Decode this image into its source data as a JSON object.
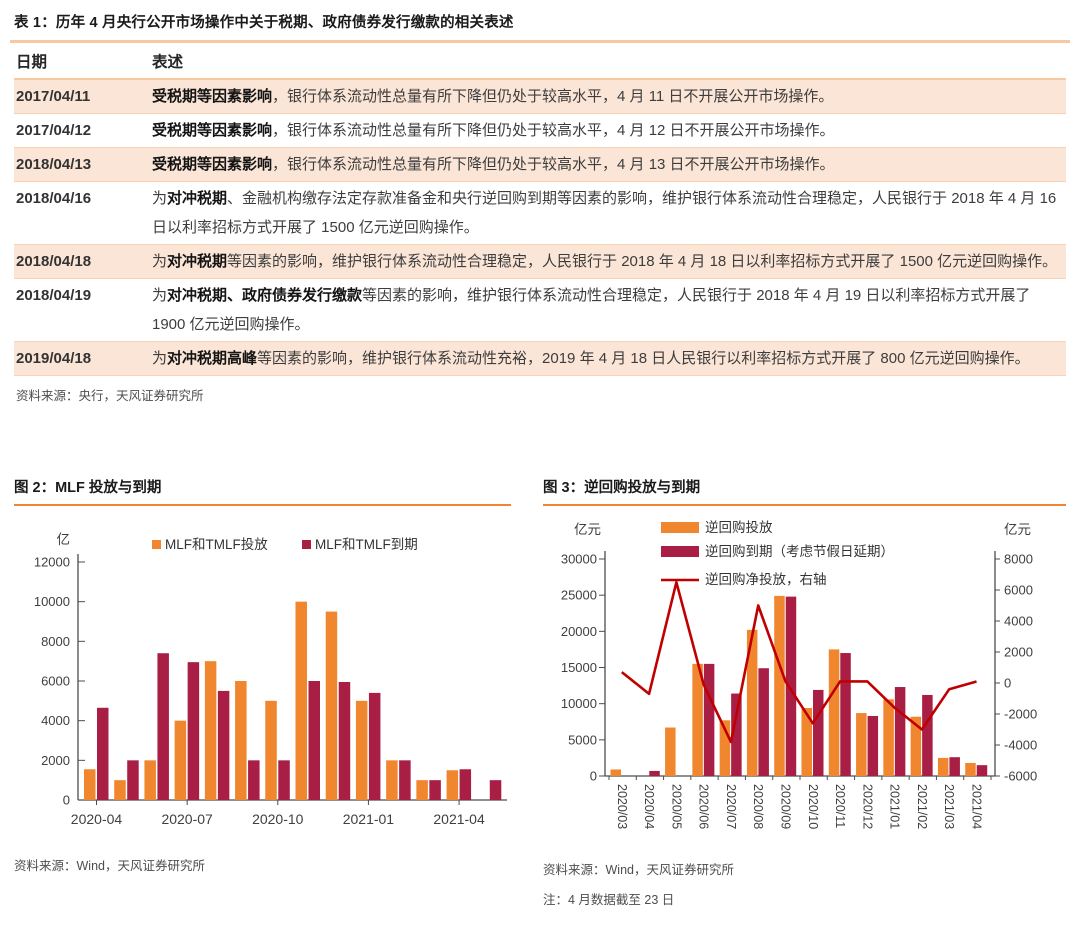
{
  "table": {
    "title": "表 1：历年 4 月央行公开市场操作中关于税期、政府债券发行缴款的相关表述",
    "columns": [
      "日期",
      "表述"
    ],
    "rows": [
      {
        "date": "2017/04/11",
        "highlight": true,
        "parts": [
          {
            "t": "受税期等因素影响",
            "b": true
          },
          {
            "t": "，银行体系流动性总量有所下降但仍处于较高水平，4 月 11 日不开展公开市场操作。",
            "b": false
          }
        ]
      },
      {
        "date": "2017/04/12",
        "highlight": false,
        "parts": [
          {
            "t": "受税期等因素影响",
            "b": true
          },
          {
            "t": "，银行体系流动性总量有所下降但仍处于较高水平，4 月 12 日不开展公开市场操作。",
            "b": false
          }
        ]
      },
      {
        "date": "2018/04/13",
        "highlight": true,
        "parts": [
          {
            "t": "受税期等因素影响",
            "b": true
          },
          {
            "t": "，银行体系流动性总量有所下降但仍处于较高水平，4 月 13 日不开展公开市场操作。",
            "b": false
          }
        ]
      },
      {
        "date": "2018/04/16",
        "highlight": false,
        "parts": [
          {
            "t": "为",
            "b": false
          },
          {
            "t": "对冲税期",
            "b": true
          },
          {
            "t": "、金融机构缴存法定存款准备金和央行逆回购到期等因素的影响，维护银行体系流动性合理稳定，人民银行于 2018 年 4 月 16 日以利率招标方式开展了 1500 亿元逆回购操作。",
            "b": false
          }
        ]
      },
      {
        "date": "2018/04/18",
        "highlight": true,
        "parts": [
          {
            "t": "为",
            "b": false
          },
          {
            "t": "对冲税期",
            "b": true
          },
          {
            "t": "等因素的影响，维护银行体系流动性合理稳定，人民银行于 2018 年 4 月 18 日以利率招标方式开展了 1500 亿元逆回购操作。",
            "b": false
          }
        ]
      },
      {
        "date": "2018/04/19",
        "highlight": false,
        "parts": [
          {
            "t": "为",
            "b": false
          },
          {
            "t": "对冲税期、政府债券发行缴款",
            "b": true
          },
          {
            "t": "等因素的影响，维护银行体系流动性合理稳定，人民银行于 2018 年 4 月 19 日以利率招标方式开展了 1900 亿元逆回购操作。",
            "b": false
          }
        ]
      },
      {
        "date": "2019/04/18",
        "highlight": true,
        "parts": [
          {
            "t": "为",
            "b": false
          },
          {
            "t": "对冲税期高峰",
            "b": true
          },
          {
            "t": "等因素的影响，维护银行体系流动性充裕，2019 年 4 月 18 日人民银行以利率招标方式开展了 800 亿元逆回购操作。",
            "b": false
          }
        ]
      }
    ],
    "source": "资料来源：央行，天风证券研究所"
  },
  "colors": {
    "orange": "#F0862D",
    "crimson": "#A91E45",
    "line_red": "#C00000",
    "rule_orange": "#F08433",
    "rule_peach": "#F7C9A3",
    "row_peach": "#FBE5D6"
  },
  "chart_data": [
    {
      "type": "bar",
      "title": "图 2：MLF 投放与到期",
      "unit": "亿",
      "categories": [
        "2020-04",
        "2020-05",
        "2020-06",
        "2020-07",
        "2020-08",
        "2020-09",
        "2020-10",
        "2020-11",
        "2020-12",
        "2021-01",
        "2021-02",
        "2021-03",
        "2021-04",
        "2021-05"
      ],
      "x_tick_labels": [
        "2020-04",
        "2020-07",
        "2020-10",
        "2021-01",
        "2021-04"
      ],
      "x_tick_indices": [
        0,
        3,
        6,
        9,
        12
      ],
      "series": [
        {
          "name": "MLF和TMLF投放",
          "color": "#F0862D",
          "values": [
            1550,
            1000,
            2000,
            4000,
            7000,
            6000,
            5000,
            10000,
            9500,
            5000,
            2000,
            1000,
            1500,
            0
          ]
        },
        {
          "name": "MLF和TMLF到期",
          "color": "#A91E45",
          "values": [
            4650,
            2000,
            7400,
            6950,
            5500,
            2000,
            2000,
            6000,
            5950,
            5400,
            2000,
            1000,
            1550,
            1000
          ]
        }
      ],
      "ylim": [
        0,
        12000
      ],
      "ytick_step": 2000,
      "grid": false,
      "legend_position": "top",
      "source": "资料来源：Wind，天风证券研究所"
    },
    {
      "type": "bar+line",
      "title": "图 3：逆回购投放与到期",
      "unit_left": "亿元",
      "unit_right": "亿元",
      "categories": [
        "2020/03",
        "2020/04",
        "2020/05",
        "2020/06",
        "2020/07",
        "2020/08",
        "2020/09",
        "2020/10",
        "2020/11",
        "2020/12",
        "2021/01",
        "2021/02",
        "2021/03",
        "2021/04"
      ],
      "bar_series": [
        {
          "name": "逆回购投放",
          "axis": "left",
          "color": "#F0862D",
          "values": [
            900,
            0,
            6700,
            15500,
            7700,
            20200,
            24900,
            9400,
            17500,
            8700,
            10600,
            8200,
            2500,
            1800
          ]
        },
        {
          "name": "逆回购到期（考虑节假日延期）",
          "axis": "left",
          "color": "#A91E45",
          "values": [
            0,
            700,
            0,
            15500,
            11400,
            14900,
            24800,
            11900,
            17000,
            8300,
            12300,
            11200,
            2600,
            1500
          ]
        }
      ],
      "line_series": [
        {
          "name": "逆回购净投放，右轴",
          "axis": "right",
          "color": "#C00000",
          "values": [
            700,
            -700,
            6500,
            -100,
            -3800,
            5000,
            100,
            -2600,
            100,
            100,
            -1600,
            -3000,
            -400,
            100
          ]
        }
      ],
      "ylim_left": [
        0,
        30000
      ],
      "ytick_step_left": 5000,
      "ylim_right": [
        -6000,
        8000
      ],
      "ytick_step_right": 2000,
      "grid": false,
      "legend_position": "top",
      "source": "资料来源：Wind，天风证券研究所",
      "note": "注：4 月数据截至 23 日"
    }
  ]
}
